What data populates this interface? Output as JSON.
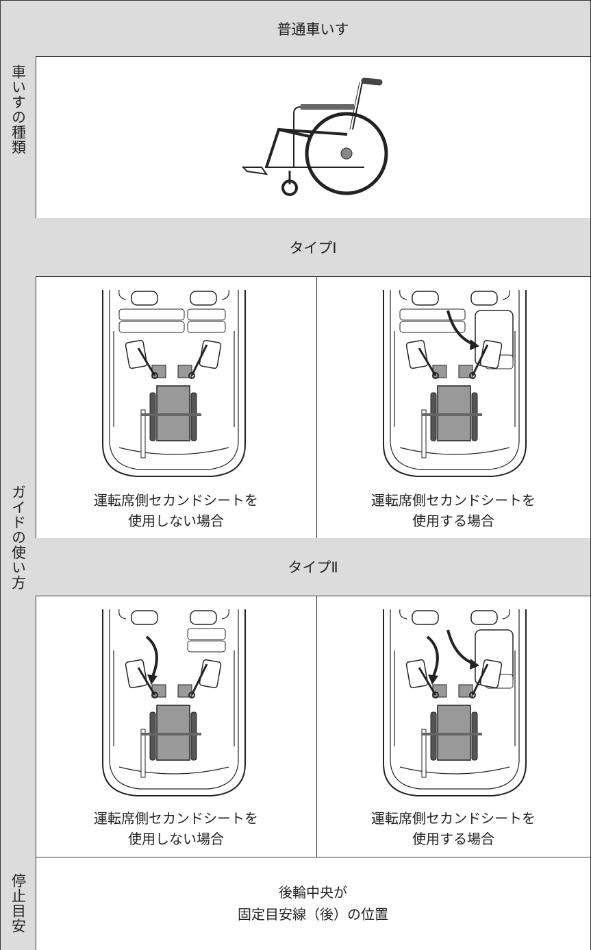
{
  "wheelchair_type": {
    "label": "車いすの種類",
    "header": "普通車いす"
  },
  "guide_usage": {
    "label": "ガイドの使い方",
    "types": [
      {
        "title": "タイプⅠ",
        "cases": [
          {
            "caption": [
              "運転席側セカンドシートを",
              "使用しない場合"
            ]
          },
          {
            "caption": [
              "運転席側セカンドシートを",
              "使用する場合"
            ]
          }
        ]
      },
      {
        "title": "タイプⅡ",
        "cases": [
          {
            "caption": [
              "運転席側セカンドシートを",
              "使用しない場合"
            ]
          },
          {
            "caption": [
              "運転席側セカンドシートを",
              "使用する場合"
            ]
          }
        ]
      }
    ]
  },
  "stop_guide": {
    "label": "停止目安",
    "text": [
      "後輪中央が",
      "固定目安線（後）の位置"
    ]
  }
}
